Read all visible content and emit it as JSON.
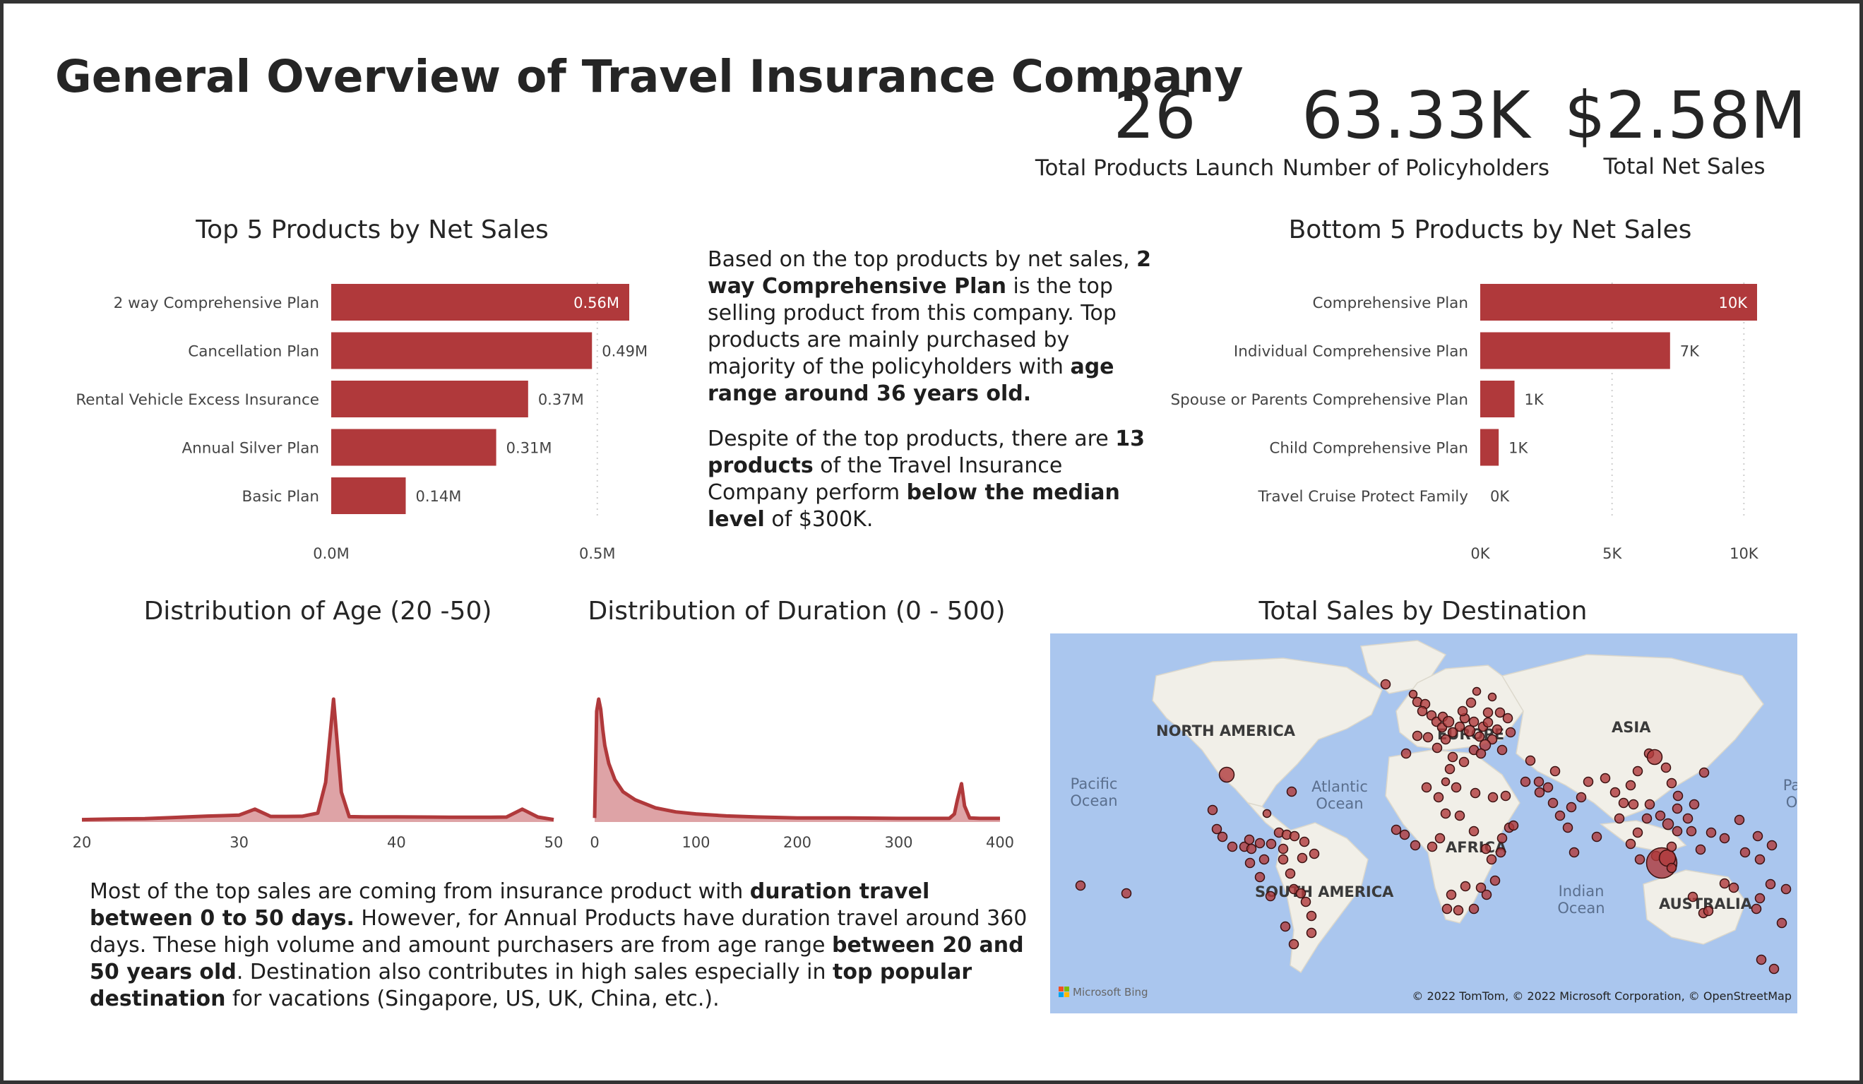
{
  "header": {
    "title": "General Overview of Travel Insurance Company"
  },
  "kpis": [
    {
      "value": "26",
      "label": "Total Products Launch"
    },
    {
      "value": "63.33K",
      "label": "Number of Policyholders"
    },
    {
      "value": "$2.58M",
      "label": "Total Net Sales"
    }
  ],
  "insight_top": {
    "p1": [
      "Based on the top products by net sales, ",
      "2 way Comprehensive Plan",
      " is the top selling product from this company. Top products are mainly purchased by majority of the policyholders with ",
      "age range around 36 years old."
    ],
    "p2": [
      "Despite of the top products, there are ",
      "13 products",
      " of the Travel Insurance Company perform ",
      "below the median level",
      " of $300K."
    ]
  },
  "insight_bottom": {
    "p1": [
      "Most of the top sales are coming from insurance product with ",
      "duration travel between 0 to 50 days.",
      " However, for Annual Products have duration travel around 360 days. These high volume and amount purchasers are from age range ",
      "between 20 and 50 years old",
      ". Destination also contributes in high sales especially in ",
      "top popular destination",
      " for vacations (Singapore, US, UK, China, etc.)."
    ]
  },
  "colors": {
    "bar": "#b0393b",
    "area_fill": "#dea3a6",
    "area_line": "#b0393b",
    "map_water": "#aac6ee",
    "map_land": "#f1efe8",
    "bubble": "#b0393b"
  },
  "chart_data": [
    {
      "type": "bar",
      "orientation": "horizontal",
      "title": "Top 5 Products by Net Sales",
      "categories": [
        "2 way Comprehensive Plan",
        "Cancellation Plan",
        "Rental Vehicle Excess Insurance",
        "Annual Silver Plan",
        "Basic Plan"
      ],
      "values": [
        0.56,
        0.49,
        0.37,
        0.31,
        0.14
      ],
      "data_labels": [
        "0.56M",
        "0.49M",
        "0.37M",
        "0.31M",
        "0.14M"
      ],
      "xlim": [
        0,
        0.56
      ],
      "xticks": [
        0,
        0.5
      ],
      "xtick_labels": [
        "0.0M",
        "0.5M"
      ]
    },
    {
      "type": "bar",
      "orientation": "horizontal",
      "title": "Bottom 5 Products by Net Sales",
      "categories": [
        "Comprehensive Plan",
        "Individual Comprehensive Plan",
        "Spouse or Parents Comprehensive Plan",
        "Child Comprehensive Plan",
        "Travel Cruise Protect Family"
      ],
      "values": [
        10.5,
        7.2,
        1.3,
        0.7,
        0
      ],
      "data_labels": [
        "10K",
        "7K",
        "1K",
        "1K",
        "0K"
      ],
      "xlim": [
        0,
        10.5
      ],
      "xticks": [
        0,
        5,
        10
      ],
      "xtick_labels": [
        "0K",
        "5K",
        "10K"
      ]
    },
    {
      "type": "area",
      "title": "Distribution of Age (20 -50)",
      "x": [
        20,
        22,
        24,
        26,
        28,
        29,
        30,
        31,
        32,
        33,
        34,
        35,
        35.5,
        36,
        36.5,
        37,
        38,
        40,
        42,
        44,
        46,
        47,
        48,
        49,
        50
      ],
      "y": [
        1.2,
        1.5,
        1.7,
        2.3,
        3.0,
        3.2,
        3.5,
        6.5,
        2.8,
        2.8,
        2.9,
        4.5,
        20,
        62,
        15,
        2.7,
        2.6,
        2.6,
        2.5,
        2.4,
        2.4,
        2.5,
        6.5,
        2.5,
        1.2
      ],
      "xlim": [
        20,
        50
      ],
      "xticks": [
        20,
        30,
        40,
        50
      ]
    },
    {
      "type": "area",
      "title": "Distribution of Duration (0 - 500)",
      "x": [
        0,
        2,
        4,
        6,
        8,
        10,
        14,
        20,
        28,
        40,
        60,
        80,
        100,
        130,
        160,
        200,
        250,
        300,
        350,
        355,
        358,
        362,
        365,
        370,
        380,
        400
      ],
      "y": [
        2,
        55,
        61,
        56,
        46,
        38,
        29,
        21,
        15,
        11,
        7,
        5,
        4,
        3,
        2.5,
        2,
        2,
        1.8,
        1.8,
        4,
        11,
        19,
        8,
        2,
        1.8,
        1.8
      ],
      "xlim": [
        0,
        400
      ],
      "xticks": [
        0,
        100,
        200,
        300,
        400
      ]
    }
  ],
  "map": {
    "title": "Total Sales by Destination",
    "labels": {
      "north_america": "NORTH AMERICA",
      "south_america": "SOUTH AMERICA",
      "europe": "EUROPE",
      "africa": "AFRICA",
      "asia": "ASIA",
      "australia": "AUSTRALIA",
      "pacific_ocean": [
        "Pacific",
        "Ocean"
      ],
      "atlantic_ocean": [
        "Atlantic",
        "Ocean"
      ],
      "indian_ocean": [
        "Indian",
        "Ocean"
      ],
      "pacific_right": [
        "Pa",
        "O"
      ]
    },
    "attribution": "© 2022 TomTom, © 2022 Microsoft Corporation, © OpenStreetMap",
    "brand": "Microsoft Bing"
  }
}
